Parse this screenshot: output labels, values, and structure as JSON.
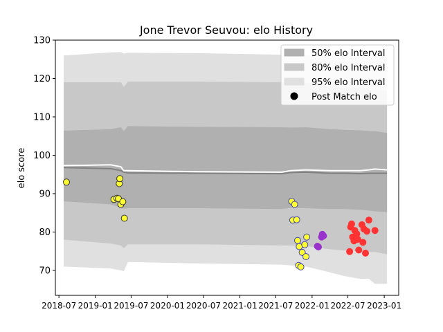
{
  "chart_data": {
    "type": "scatter",
    "title": "Jone Trevor Seuvou: elo History",
    "xlabel": "",
    "ylabel": "elo score",
    "xlim": [
      "2018-06-13",
      "2023-03-15"
    ],
    "ylim": [
      63.5,
      130
    ],
    "yticks": [
      70,
      80,
      90,
      100,
      110,
      120,
      130
    ],
    "xticks": [
      "2018-07",
      "2019-01",
      "2019-07",
      "2020-01",
      "2020-07",
      "2021-01",
      "2021-07",
      "2022-01",
      "2022-07",
      "2023-01"
    ],
    "legend_position": "top-right",
    "legend": [
      {
        "label": "50% elo Interval",
        "kind": "band",
        "color": "#b0b0b0"
      },
      {
        "label": "80% elo Interval",
        "kind": "band",
        "color": "#c8c8c8"
      },
      {
        "label": "95% elo Interval",
        "kind": "band",
        "color": "#e0e0e0"
      },
      {
        "label": "Post Match elo",
        "kind": "marker",
        "color": "#000000"
      }
    ],
    "bands": {
      "x": [
        "2018-07-25",
        "2019-03-20",
        "2019-05-10",
        "2019-05-25",
        "2019-06-15",
        "2020-06-01",
        "2021-08-01",
        "2021-09-15",
        "2021-12-01",
        "2022-04-01",
        "2022-06-15",
        "2022-09-01",
        "2022-10-15",
        "2022-11-15",
        "2023-01-15"
      ],
      "mean": [
        96.8,
        96.5,
        96.0,
        95.6,
        95.4,
        95.3,
        95.2,
        95.5,
        95.6,
        95.3,
        95.3,
        95.2,
        95.3,
        95.3,
        95.3
      ],
      "p50_low": [
        88.0,
        87.2,
        86.4,
        86.1,
        86.2,
        86.2,
        86.0,
        86.3,
        86.2,
        86.0,
        86.0,
        85.8,
        85.6,
        85.4,
        85.2
      ],
      "p50_high": [
        106.4,
        106.8,
        107.3,
        106.3,
        107.6,
        107.4,
        107.3,
        107.2,
        107.3,
        106.8,
        106.6,
        106.5,
        106.3,
        106.3,
        105.8
      ],
      "p80_low": [
        78.0,
        77.0,
        76.5,
        75.8,
        76.8,
        76.8,
        76.5,
        76.5,
        76.3,
        75.5,
        75.2,
        75.0,
        74.8,
        74.8,
        74.2
      ],
      "p80_high": [
        119.0,
        119.0,
        119.0,
        117.8,
        119.2,
        119.2,
        119.0,
        119.0,
        118.9,
        118.0,
        117.6,
        117.5,
        117.3,
        117.0,
        116.7
      ],
      "p95_low": [
        71.0,
        70.5,
        70.0,
        69.8,
        72.2,
        71.8,
        71.5,
        71.3,
        71.0,
        69.5,
        68.5,
        67.8,
        67.8,
        66.5,
        66.5
      ],
      "p95_high": [
        126.0,
        126.8,
        126.9,
        126.5,
        126.7,
        126.6,
        126.2,
        126.0,
        126.0,
        126.0,
        125.9,
        125.8,
        125.8,
        125.8,
        125.8
      ],
      "post_match_line": [
        97.3,
        97.5,
        97.0,
        96.0,
        96.0,
        95.7,
        95.6,
        96.0,
        96.2,
        96.0,
        96.0,
        96.0,
        96.2,
        96.4,
        96.2
      ]
    },
    "series": [
      {
        "color": "#ffff33",
        "edge": "#333333",
        "x": [
          "2018-08-08",
          "2019-04-05",
          "2019-04-20",
          "2019-04-28",
          "2019-05-02",
          "2019-05-05",
          "2019-05-10",
          "2019-05-20",
          "2019-05-28"
        ],
        "y": [
          93.0,
          88.5,
          88.8,
          88.7,
          92.6,
          93.9,
          87.2,
          87.9,
          83.6
        ]
      },
      {
        "color": "#ffff33",
        "edge": "#4444aa",
        "x": [
          "2021-09-20",
          "2021-09-25",
          "2021-10-05",
          "2021-10-15",
          "2021-10-20",
          "2021-10-25",
          "2021-10-28",
          "2021-11-05",
          "2021-11-12",
          "2021-11-25",
          "2021-12-01",
          "2021-12-05"
        ],
        "y": [
          88.0,
          83.1,
          87.2,
          83.2,
          77.8,
          71.3,
          76.2,
          70.9,
          74.7,
          76.7,
          73.6,
          78.7
        ]
      },
      {
        "color": "#9933cc",
        "edge": "#9933cc",
        "x": [
          "2022-01-28",
          "2022-02-02",
          "2022-02-18",
          "2022-02-22",
          "2022-02-28"
        ],
        "y": [
          76.3,
          76.1,
          78.7,
          79.4,
          79.0
        ]
      },
      {
        "color": "#ff3333",
        "edge": "#ff3333",
        "x": [
          "2022-07-10",
          "2022-07-15",
          "2022-07-20",
          "2022-07-25",
          "2022-08-01",
          "2022-08-05",
          "2022-08-10",
          "2022-08-15",
          "2022-08-20",
          "2022-08-25",
          "2022-09-10",
          "2022-09-15",
          "2022-09-20",
          "2022-09-28",
          "2022-10-05",
          "2022-10-15",
          "2022-11-15"
        ],
        "y": [
          74.9,
          81.3,
          82.1,
          78.7,
          77.7,
          80.4,
          78.0,
          79.5,
          78.1,
          75.3,
          81.9,
          77.3,
          80.8,
          74.5,
          80.2,
          83.1,
          80.4
        ]
      }
    ]
  }
}
